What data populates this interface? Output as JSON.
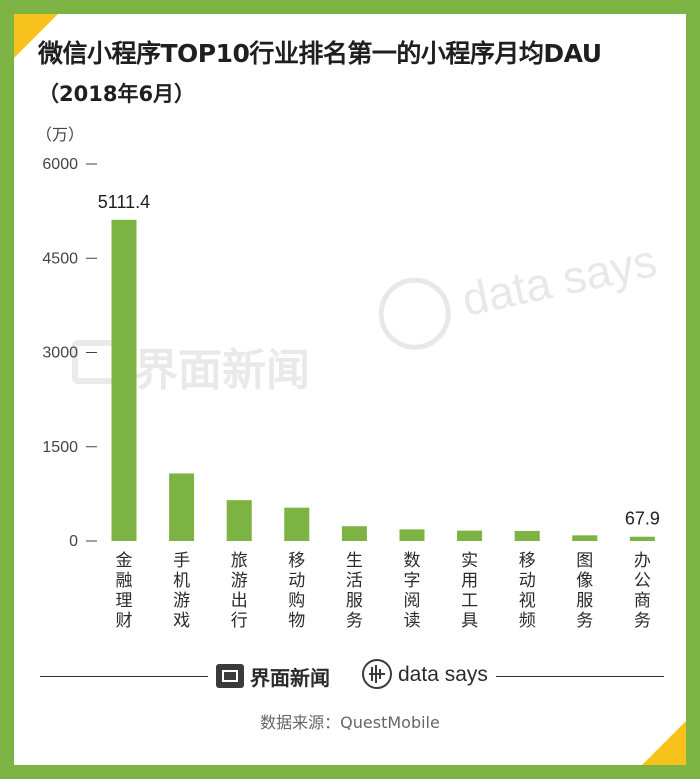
{
  "header": {
    "title": "微信小程序TOP10行业排名第一的小程序月均DAU",
    "subtitle": "（2018年6月）"
  },
  "colors": {
    "bar": "#7cb342",
    "frame_green": "#7cb342",
    "corner_yellow": "#f7c21b"
  },
  "chart_data": {
    "type": "bar",
    "unit_label": "（万）",
    "categories": [
      "金融理财",
      "手机游戏",
      "旅游出行",
      "移动购物",
      "生活服务",
      "数字阅读",
      "实用工具",
      "移动视频",
      "图像服务",
      "办公商务"
    ],
    "values": [
      5111.4,
      1075,
      650,
      530,
      235,
      185,
      165,
      160,
      90,
      67.9
    ],
    "data_labels": [
      {
        "index": 0,
        "text": "5111.4"
      },
      {
        "index": 9,
        "text": "67.9"
      }
    ],
    "yticks": [
      "0",
      "1500",
      "3000",
      "4500",
      "6000"
    ],
    "ylim": [
      0,
      6000
    ],
    "grid": false,
    "legend": "none"
  },
  "branding": {
    "jiemian_logo_text": "界面新闻",
    "datasays_text": "data says",
    "source": "数据来源：QuestMobile"
  },
  "watermarks": {
    "left_text": "界面新闻",
    "right_text": "data says"
  }
}
